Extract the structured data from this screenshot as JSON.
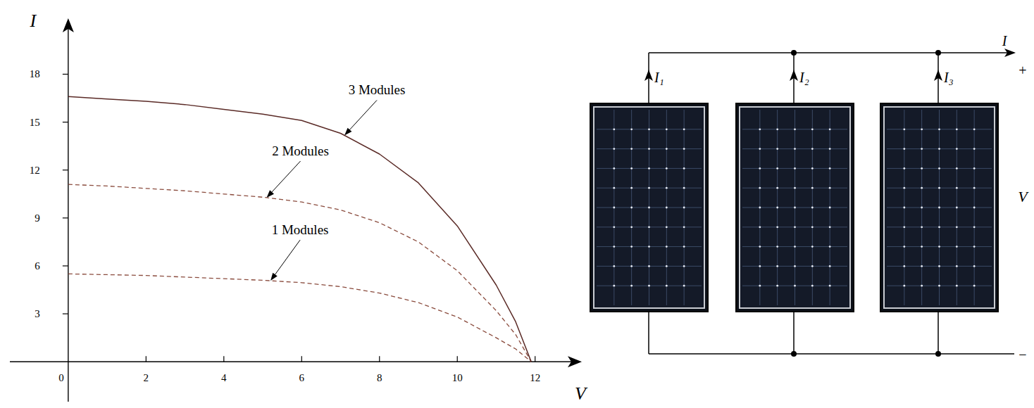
{
  "chart_data": {
    "type": "line",
    "xlabel": "V",
    "ylabel": "I",
    "x": [
      0,
      1,
      2,
      3,
      4,
      5,
      6,
      7,
      8,
      9,
      10,
      11,
      11.5,
      11.9
    ],
    "series": [
      {
        "name": "1 Modules",
        "color": "#8a4b3d",
        "line_style": "dashed",
        "values": [
          5.5,
          5.45,
          5.4,
          5.3,
          5.2,
          5.1,
          4.95,
          4.7,
          4.3,
          3.7,
          2.8,
          1.5,
          0.8,
          0
        ]
      },
      {
        "name": "2 Modules",
        "color": "#8a4b3d",
        "line_style": "dashed",
        "values": [
          11.1,
          11.0,
          10.85,
          10.7,
          10.5,
          10.3,
          10.0,
          9.5,
          8.7,
          7.5,
          5.7,
          3.2,
          1.7,
          0
        ]
      },
      {
        "name": "3 Modules",
        "color": "#5a2a26",
        "line_style": "solid",
        "values": [
          16.6,
          16.45,
          16.3,
          16.1,
          15.8,
          15.5,
          15.1,
          14.3,
          13.0,
          11.2,
          8.5,
          4.8,
          2.5,
          0
        ]
      }
    ],
    "xlim": [
      -1.5,
      13.2
    ],
    "ylim": [
      -2.5,
      21.5
    ],
    "xticks": [
      0,
      2,
      4,
      6,
      8,
      10,
      12
    ],
    "yticks": [
      3,
      6,
      9,
      12,
      15,
      18
    ],
    "grid": false
  },
  "circuit": {
    "output_current": "I",
    "branch_currents": [
      "I₁",
      "I₂",
      "I₃"
    ],
    "positive": "+",
    "voltage": "V",
    "negative": "−"
  }
}
